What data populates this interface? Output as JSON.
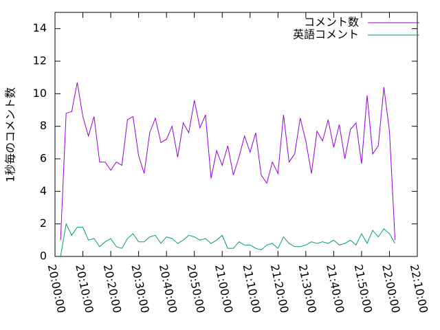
{
  "chart_data": {
    "type": "line",
    "ylabel": "1秒毎のコメント数",
    "x": [
      "20:02:00",
      "20:04:00",
      "20:06:00",
      "20:08:00",
      "20:10:00",
      "20:12:00",
      "20:14:00",
      "20:16:00",
      "20:18:00",
      "20:20:00",
      "20:22:00",
      "20:24:00",
      "20:26:00",
      "20:28:00",
      "20:30:00",
      "20:32:00",
      "20:34:00",
      "20:36:00",
      "20:38:00",
      "20:40:00",
      "20:42:00",
      "20:44:00",
      "20:46:00",
      "20:48:00",
      "20:50:00",
      "20:52:00",
      "20:54:00",
      "20:56:00",
      "20:58:00",
      "21:00:00",
      "21:02:00",
      "21:04:00",
      "21:06:00",
      "21:08:00",
      "21:10:00",
      "21:12:00",
      "21:14:00",
      "21:16:00",
      "21:18:00",
      "21:20:00",
      "21:22:00",
      "21:24:00",
      "21:26:00",
      "21:28:00",
      "21:30:00",
      "21:32:00",
      "21:34:00",
      "21:36:00",
      "21:38:00",
      "21:40:00",
      "21:42:00",
      "21:44:00",
      "21:46:00",
      "21:48:00",
      "21:50:00",
      "21:52:00",
      "21:54:00",
      "21:56:00",
      "21:58:00",
      "22:00:00",
      "22:02:00"
    ],
    "series": [
      {
        "name": "コメント数",
        "color": "#9400d3",
        "values": [
          1.0,
          8.8,
          8.9,
          10.7,
          8.6,
          7.4,
          8.6,
          5.8,
          5.8,
          5.3,
          5.8,
          5.6,
          8.4,
          8.6,
          6.2,
          5.1,
          7.6,
          8.5,
          7.0,
          7.2,
          8.0,
          6.1,
          8.2,
          7.6,
          9.6,
          7.9,
          8.7,
          4.8,
          6.5,
          5.6,
          6.8,
          5.0,
          6.1,
          7.4,
          6.4,
          7.6,
          5.0,
          4.5,
          5.8,
          5.1,
          8.7,
          5.8,
          6.3,
          8.5,
          7.1,
          5.1,
          7.7,
          7.1,
          8.4,
          6.7,
          8.1,
          6.0,
          7.8,
          8.2,
          5.7,
          9.9,
          6.3,
          6.8,
          10.4,
          7.7,
          1.0
        ]
      },
      {
        "name": "英語コメント",
        "color": "#009e73",
        "values": [
          0,
          2.0,
          1.3,
          1.8,
          1.8,
          1.0,
          1.1,
          0.6,
          0.9,
          1.1,
          0.6,
          0.5,
          1.1,
          1.4,
          0.9,
          0.9,
          1.2,
          1.3,
          0.8,
          1.2,
          1.1,
          0.8,
          1.0,
          1.3,
          1.2,
          1.0,
          1.1,
          0.8,
          1.0,
          1.3,
          0.5,
          0.5,
          0.9,
          0.7,
          0.7,
          0.5,
          0.4,
          0.7,
          0.8,
          0.5,
          1.2,
          0.8,
          0.6,
          0.6,
          0.7,
          0.9,
          0.8,
          0.9,
          0.8,
          1.0,
          0.7,
          0.8,
          1.0,
          0.7,
          1.4,
          0.8,
          1.6,
          1.2,
          1.7,
          1.4,
          0.8
        ]
      }
    ],
    "xlim": [
      "20:00:00",
      "22:10:00"
    ],
    "xticks": [
      "20:00:00",
      "20:10:00",
      "20:20:00",
      "20:30:00",
      "20:40:00",
      "20:50:00",
      "21:00:00",
      "21:10:00",
      "21:20:00",
      "21:30:00",
      "21:40:00",
      "21:50:00",
      "22:00:00",
      "22:10:00"
    ],
    "ylim": [
      0,
      15
    ],
    "yticks": [
      0,
      2,
      4,
      6,
      8,
      10,
      12,
      14
    ],
    "legend": "upper right",
    "grid": false
  }
}
